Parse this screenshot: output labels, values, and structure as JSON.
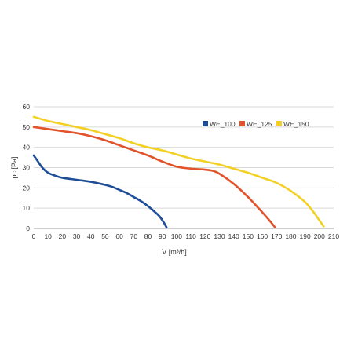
{
  "chart_data": {
    "type": "line",
    "xlabel": "V [m³/h]",
    "ylabel": "pc [Pa]",
    "xlim": [
      0,
      210
    ],
    "ylim": [
      0,
      60
    ],
    "x_ticks": [
      "0",
      "10",
      "20",
      "30",
      "40",
      "50",
      "60",
      "70",
      "80",
      "90",
      "100",
      "110",
      "120",
      "130",
      "140",
      "150",
      "160",
      "170",
      "180",
      "190",
      "200",
      "210"
    ],
    "y_ticks": [
      "0",
      "10",
      "20",
      "30",
      "40",
      "50",
      "60"
    ],
    "grid": "horizontal",
    "legend_position": "top-right",
    "series": [
      {
        "name": "WE_100",
        "color": "#1f4e96",
        "points": [
          [
            0,
            36
          ],
          [
            3,
            33
          ],
          [
            6,
            30
          ],
          [
            10,
            27.5
          ],
          [
            15,
            26
          ],
          [
            20,
            25
          ],
          [
            30,
            24
          ],
          [
            40,
            23
          ],
          [
            50,
            21.5
          ],
          [
            55,
            20.5
          ],
          [
            60,
            19
          ],
          [
            65,
            17.5
          ],
          [
            70,
            15.5
          ],
          [
            75,
            13.5
          ],
          [
            80,
            11
          ],
          [
            85,
            8
          ],
          [
            88,
            6
          ],
          [
            91,
            3
          ],
          [
            93,
            0.5
          ]
        ]
      },
      {
        "name": "WE_125",
        "color": "#e2522b",
        "points": [
          [
            0,
            50
          ],
          [
            10,
            49
          ],
          [
            20,
            48
          ],
          [
            30,
            47
          ],
          [
            40,
            45.5
          ],
          [
            50,
            43.5
          ],
          [
            60,
            41
          ],
          [
            70,
            38.5
          ],
          [
            80,
            36
          ],
          [
            90,
            33
          ],
          [
            100,
            30.5
          ],
          [
            110,
            29.5
          ],
          [
            120,
            29
          ],
          [
            125,
            28.5
          ],
          [
            130,
            27
          ],
          [
            140,
            22
          ],
          [
            150,
            15.5
          ],
          [
            160,
            8
          ],
          [
            165,
            4
          ],
          [
            169,
            0.5
          ]
        ]
      },
      {
        "name": "WE_150",
        "color": "#f2d024",
        "points": [
          [
            0,
            55
          ],
          [
            10,
            53
          ],
          [
            20,
            51.5
          ],
          [
            30,
            50
          ],
          [
            40,
            48.5
          ],
          [
            50,
            46.5
          ],
          [
            60,
            44.5
          ],
          [
            70,
            42
          ],
          [
            80,
            40
          ],
          [
            90,
            38.5
          ],
          [
            100,
            36.5
          ],
          [
            110,
            34.5
          ],
          [
            120,
            33
          ],
          [
            130,
            31.5
          ],
          [
            140,
            29.5
          ],
          [
            150,
            27.5
          ],
          [
            160,
            25
          ],
          [
            170,
            22.5
          ],
          [
            180,
            18.5
          ],
          [
            190,
            13
          ],
          [
            196,
            8
          ],
          [
            200,
            4
          ],
          [
            203,
            1
          ]
        ]
      }
    ]
  }
}
